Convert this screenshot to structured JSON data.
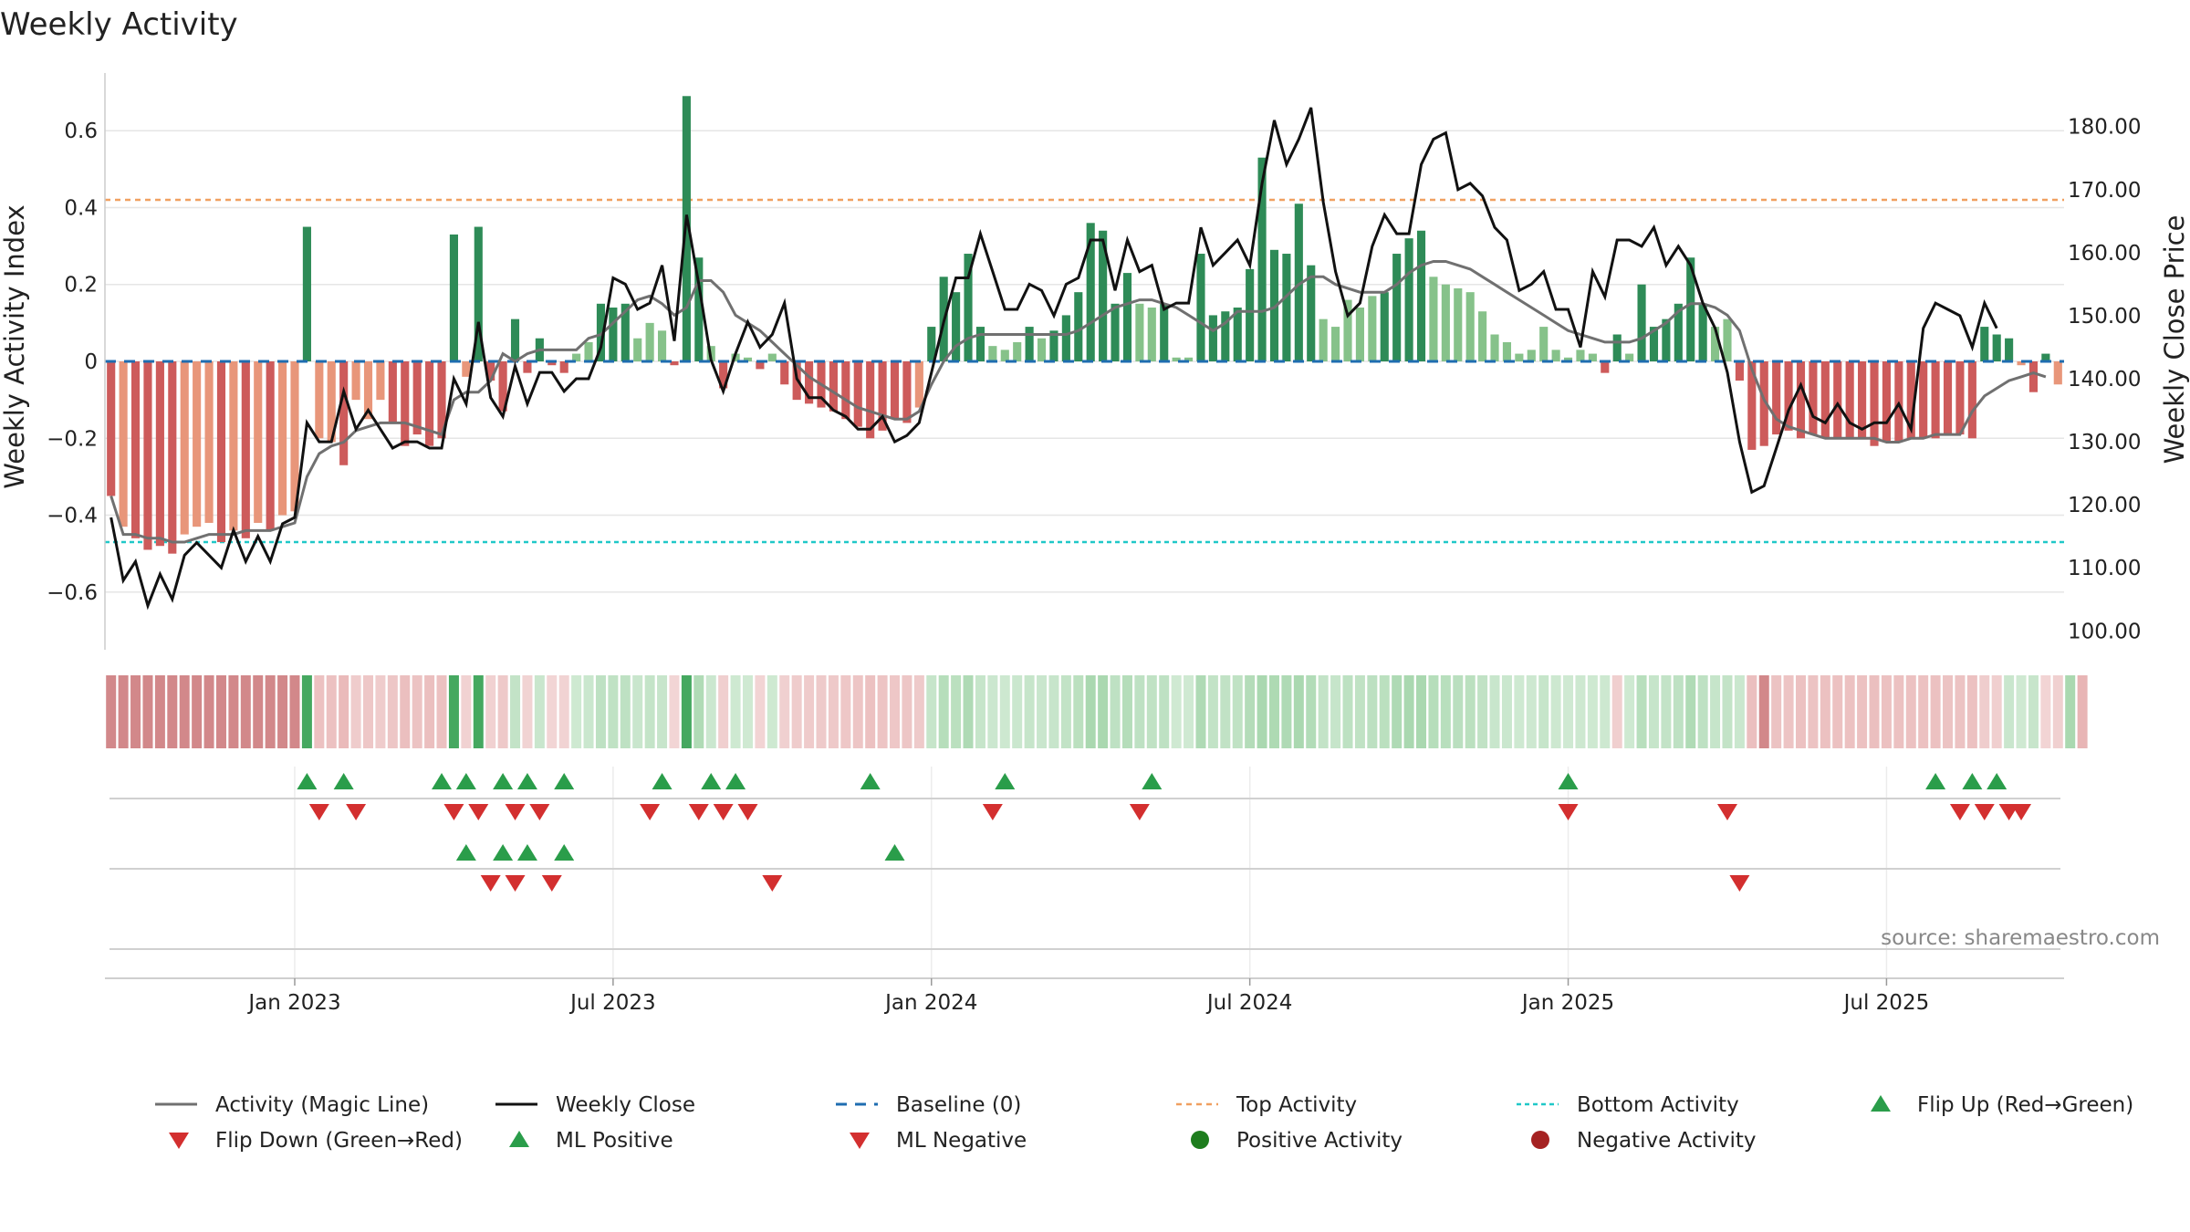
{
  "chart_data": {
    "type": "bar",
    "title": "Weekly Activity",
    "ylabel_left": "Weekly Activity Index",
    "ylabel_right": "Weekly Close Price",
    "source": "source: sharemaestro.com",
    "left_ylim": [
      -0.75,
      0.75
    ],
    "right_ylim": [
      97.0,
      188.5
    ],
    "left_ticks": [
      {
        "v": 0.6,
        "label": "0.6"
      },
      {
        "v": 0.4,
        "label": "0.4"
      },
      {
        "v": 0.2,
        "label": "0.2"
      },
      {
        "v": 0.0,
        "label": "0"
      },
      {
        "v": -0.2,
        "label": "−0.2"
      },
      {
        "v": -0.4,
        "label": "−0.4"
      },
      {
        "v": -0.6,
        "label": "−0.6"
      }
    ],
    "right_ticks": [
      {
        "v": 180,
        "label": "180.00"
      },
      {
        "v": 170,
        "label": "170.00"
      },
      {
        "v": 160,
        "label": "160.00"
      },
      {
        "v": 150,
        "label": "150.00"
      },
      {
        "v": 140,
        "label": "140.00"
      },
      {
        "v": 130,
        "label": "130.00"
      },
      {
        "v": 120,
        "label": "120.00"
      },
      {
        "v": 110,
        "label": "110.00"
      },
      {
        "v": 100,
        "label": "100.00"
      }
    ],
    "x_ticks": [
      {
        "week": 15,
        "label": "Jan 2023"
      },
      {
        "week": 41,
        "label": "Jul 2023"
      },
      {
        "week": 67,
        "label": "Jan 2024"
      },
      {
        "week": 93,
        "label": "Jul 2024"
      },
      {
        "week": 119,
        "label": "Jan 2025"
      },
      {
        "week": 145,
        "label": "Jul 2025"
      }
    ],
    "top_activity": 0.42,
    "bottom_activity": -0.47,
    "activity": [
      -0.35,
      -0.43,
      -0.46,
      -0.49,
      -0.48,
      -0.5,
      -0.45,
      -0.43,
      -0.42,
      -0.47,
      -0.44,
      -0.46,
      -0.42,
      -0.44,
      -0.4,
      -0.39,
      0.35,
      -0.2,
      -0.21,
      -0.27,
      -0.1,
      -0.15,
      -0.1,
      -0.16,
      -0.22,
      -0.19,
      -0.22,
      -0.2,
      0.33,
      -0.04,
      0.35,
      -0.05,
      -0.13,
      0.11,
      -0.03,
      0.06,
      -0.01,
      -0.03,
      0.02,
      0.05,
      0.15,
      0.14,
      0.15,
      0.06,
      0.1,
      0.08,
      -0.01,
      0.69,
      0.27,
      0.04,
      -0.07,
      0.02,
      0.01,
      -0.02,
      0.02,
      -0.06,
      -0.1,
      -0.11,
      -0.12,
      -0.13,
      -0.15,
      -0.17,
      -0.2,
      -0.18,
      -0.15,
      -0.16,
      -0.12,
      0.09,
      0.22,
      0.18,
      0.28,
      0.09,
      0.04,
      0.03,
      0.05,
      0.09,
      0.06,
      0.08,
      0.12,
      0.18,
      0.36,
      0.34,
      0.15,
      0.23,
      0.15,
      0.14,
      0.15,
      0.01,
      0.01,
      0.28,
      0.12,
      0.13,
      0.14,
      0.24,
      0.53,
      0.29,
      0.28,
      0.41,
      0.25,
      0.11,
      0.09,
      0.16,
      0.14,
      0.17,
      0.18,
      0.28,
      0.32,
      0.34,
      0.22,
      0.2,
      0.19,
      0.18,
      0.13,
      0.07,
      0.05,
      0.02,
      0.03,
      0.09,
      0.03,
      0.01,
      0.03,
      0.02,
      -0.03,
      0.07,
      0.02,
      0.2,
      0.09,
      0.11,
      0.15,
      0.27,
      0.15,
      0.09,
      0.11,
      -0.05,
      -0.23,
      -0.22,
      -0.19,
      -0.18,
      -0.2,
      -0.19,
      -0.2,
      -0.2,
      -0.2,
      -0.2,
      -0.22,
      -0.21,
      -0.21,
      -0.2,
      -0.2,
      -0.2,
      -0.19,
      -0.19,
      -0.2,
      0.09,
      0.07,
      0.06,
      -0.01,
      -0.08,
      0.02,
      -0.06
    ],
    "magic_line": [
      -0.35,
      -0.45,
      -0.45,
      -0.46,
      -0.46,
      -0.47,
      -0.47,
      -0.46,
      -0.45,
      -0.45,
      -0.45,
      -0.44,
      -0.44,
      -0.44,
      -0.43,
      -0.42,
      -0.3,
      -0.24,
      -0.22,
      -0.21,
      -0.18,
      -0.17,
      -0.16,
      -0.16,
      -0.16,
      -0.17,
      -0.18,
      -0.19,
      -0.1,
      -0.08,
      -0.08,
      -0.05,
      0.02,
      0.0,
      0.02,
      0.03,
      0.03,
      0.03,
      0.03,
      0.06,
      0.07,
      0.1,
      0.13,
      0.16,
      0.17,
      0.15,
      0.12,
      0.14,
      0.21,
      0.21,
      0.18,
      0.12,
      0.1,
      0.08,
      0.05,
      0.02,
      -0.01,
      -0.04,
      -0.06,
      -0.08,
      -0.1,
      -0.12,
      -0.13,
      -0.14,
      -0.15,
      -0.15,
      -0.13,
      -0.06,
      0.0,
      0.04,
      0.06,
      0.07,
      0.07,
      0.07,
      0.07,
      0.07,
      0.07,
      0.07,
      0.07,
      0.08,
      0.1,
      0.12,
      0.14,
      0.15,
      0.16,
      0.16,
      0.15,
      0.14,
      0.12,
      0.1,
      0.08,
      0.1,
      0.13,
      0.13,
      0.13,
      0.14,
      0.17,
      0.2,
      0.22,
      0.22,
      0.2,
      0.19,
      0.18,
      0.18,
      0.18,
      0.2,
      0.23,
      0.25,
      0.26,
      0.26,
      0.25,
      0.24,
      0.22,
      0.2,
      0.18,
      0.16,
      0.14,
      0.12,
      0.1,
      0.08,
      0.07,
      0.06,
      0.05,
      0.05,
      0.05,
      0.06,
      0.08,
      0.1,
      0.13,
      0.15,
      0.15,
      0.14,
      0.12,
      0.08,
      -0.02,
      -0.1,
      -0.15,
      -0.17,
      -0.18,
      -0.19,
      -0.2,
      -0.2,
      -0.2,
      -0.2,
      -0.2,
      -0.21,
      -0.21,
      -0.2,
      -0.2,
      -0.19,
      -0.19,
      -0.19,
      -0.13,
      -0.09,
      -0.07,
      -0.05,
      -0.04,
      -0.03,
      -0.04
    ],
    "weekly_close": [
      118,
      108,
      111,
      104,
      109,
      105,
      112,
      114,
      112,
      110,
      116,
      111,
      115,
      111,
      117,
      118,
      133,
      130,
      130,
      138,
      132,
      135,
      132,
      129,
      130,
      130,
      129,
      129,
      140,
      136,
      149,
      137,
      134,
      142,
      136,
      141,
      141,
      138,
      140,
      140,
      145,
      156,
      155,
      151,
      152,
      158,
      146,
      166,
      155,
      143,
      138,
      144,
      149,
      145,
      147,
      152,
      140,
      137,
      137,
      135,
      134,
      132,
      132,
      134,
      130,
      131,
      133,
      141,
      149,
      156,
      156,
      163,
      157,
      151,
      151,
      155,
      154,
      150,
      155,
      156,
      162,
      162,
      154,
      162,
      157,
      158,
      151,
      152,
      152,
      164,
      158,
      160,
      162,
      158,
      171,
      181,
      174,
      178,
      183,
      168,
      157,
      150,
      152,
      161,
      166,
      163,
      163,
      174,
      178,
      179,
      170,
      171,
      169,
      164,
      162,
      154,
      155,
      157,
      151,
      151,
      145,
      157,
      153,
      162,
      162,
      161,
      164,
      158,
      161,
      158,
      152,
      148,
      141,
      130,
      122,
      123,
      129,
      135,
      139,
      134,
      133,
      136,
      133,
      132,
      133,
      133,
      136,
      132,
      148,
      152,
      151,
      150,
      145,
      152,
      148
    ],
    "status_strip": [
      "R",
      "R",
      "R",
      "R",
      "R",
      "R",
      "R",
      "R",
      "R",
      "R",
      "R",
      "R",
      "R",
      "R",
      "R",
      "R",
      "G",
      "r",
      "r",
      "r",
      "r",
      "r",
      "r",
      "r",
      "r",
      "r",
      "r",
      "r",
      "G",
      "r",
      "G",
      "r",
      "r",
      "g",
      "r",
      "g",
      "r",
      "r",
      "g",
      "g",
      "g",
      "g",
      "g",
      "g",
      "g",
      "g",
      "r",
      "G",
      "g",
      "g",
      "r",
      "g",
      "g",
      "r",
      "g",
      "r",
      "r",
      "r",
      "r",
      "r",
      "r",
      "r",
      "r",
      "r",
      "r",
      "r",
      "r",
      "g",
      "g",
      "g",
      "g",
      "g",
      "g",
      "g",
      "g",
      "g",
      "g",
      "g",
      "g",
      "g",
      "g",
      "g",
      "g",
      "g",
      "g",
      "g",
      "g",
      "g",
      "g",
      "g",
      "g",
      "g",
      "g",
      "g",
      "g",
      "g",
      "g",
      "g",
      "g",
      "g",
      "g",
      "g",
      "g",
      "g",
      "g",
      "g",
      "g",
      "g",
      "g",
      "g",
      "g",
      "g",
      "g",
      "g",
      "g",
      "g",
      "g",
      "g",
      "g",
      "g",
      "g",
      "g",
      "g",
      "r",
      "g",
      "g",
      "g",
      "g",
      "g",
      "g",
      "g",
      "g",
      "g",
      "g",
      "r",
      "R",
      "r",
      "r",
      "r",
      "r",
      "r",
      "r",
      "r",
      "r",
      "r",
      "r",
      "r",
      "r",
      "r",
      "r",
      "r",
      "r",
      "r",
      "r",
      "r",
      "g",
      "g",
      "g",
      "r",
      "r",
      "g",
      "r"
    ],
    "flip_up_weeks": [
      16,
      19,
      27,
      29,
      32,
      34,
      37,
      45,
      49,
      51,
      62,
      73,
      85,
      119,
      149,
      152,
      154
    ],
    "flip_down_weeks": [
      17,
      20,
      28,
      30,
      33,
      35,
      44,
      48,
      50,
      52,
      72,
      84,
      119,
      132,
      151,
      153,
      155,
      156
    ],
    "ml_positive_weeks": [
      29,
      32,
      34,
      37,
      64
    ],
    "ml_negative_weeks": [
      31,
      33,
      36,
      54,
      133
    ],
    "colors": {
      "pos_dark": "#2e8b57",
      "pos_light": "#86c28a",
      "neg_dark": "#cd5b5b",
      "neg_light": "#e8967a",
      "magic": "#707070",
      "close": "#111111",
      "baseline": "#1f6db0",
      "top": "#f0a060",
      "bottom": "#20c8c8",
      "flip_up": "#2a9d4a",
      "flip_down": "#d32f2f"
    },
    "legend": [
      {
        "key": "magic",
        "label": "Activity (Magic Line)"
      },
      {
        "key": "close",
        "label": "Weekly Close"
      },
      {
        "key": "baseline",
        "label": "Baseline (0)"
      },
      {
        "key": "top",
        "label": "Top Activity"
      },
      {
        "key": "bottom",
        "label": "Bottom Activity"
      },
      {
        "key": "flip_up",
        "label": "Flip Up (Red→Green)"
      },
      {
        "key": "flip_down",
        "label": "Flip Down (Green→Red)"
      },
      {
        "key": "ml_pos",
        "label": "ML Positive"
      },
      {
        "key": "ml_neg",
        "label": "ML Negative"
      },
      {
        "key": "pos_act",
        "label": "Positive Activity"
      },
      {
        "key": "neg_act",
        "label": "Negative Activity"
      }
    ]
  }
}
